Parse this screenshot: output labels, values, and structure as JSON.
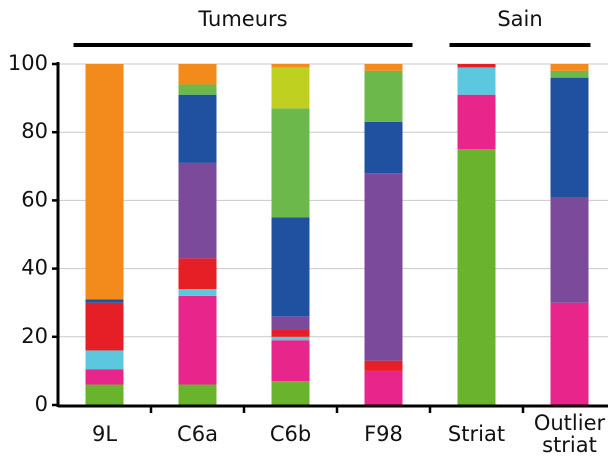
{
  "chart_data": {
    "type": "stacked_bar",
    "categories": [
      "9L",
      "C6a",
      "C6b",
      "F98",
      "Striat",
      "Outlier\nstriat"
    ],
    "groups": [
      {
        "label": "Tumeurs",
        "categories": [
          "9L",
          "C6a",
          "C6b",
          "F98"
        ]
      },
      {
        "label": "Sain",
        "categories": [
          "Striat",
          "Outlier\nstriat"
        ]
      }
    ],
    "series": [
      {
        "color": "#6ab42d",
        "values": [
          6,
          6,
          7,
          0,
          75,
          0
        ]
      },
      {
        "color": "#e8258a",
        "values": [
          4.5,
          26,
          12,
          10,
          16,
          30
        ]
      },
      {
        "color": "#5bc8e0",
        "values": [
          5.5,
          2,
          1,
          0,
          8,
          0
        ]
      },
      {
        "color": "#e61e25",
        "values": [
          14,
          9,
          2,
          3,
          1,
          0
        ]
      },
      {
        "color": "#7b4a9b",
        "values": [
          0,
          28,
          4,
          55,
          0,
          31
        ]
      },
      {
        "color": "#2050a0",
        "values": [
          1,
          20,
          29,
          15,
          0,
          35
        ]
      },
      {
        "color": "#6cb84a",
        "values": [
          0,
          3,
          32,
          15,
          0,
          2
        ]
      },
      {
        "color": "#c0d020",
        "values": [
          0,
          0,
          12,
          0,
          0,
          0
        ]
      },
      {
        "color": "#f28a1c",
        "values": [
          69,
          6,
          1,
          2,
          0,
          2
        ]
      }
    ],
    "ylim": [
      0,
      100
    ],
    "yticks": [
      0,
      20,
      40,
      60,
      80,
      100
    ],
    "grid": true
  }
}
